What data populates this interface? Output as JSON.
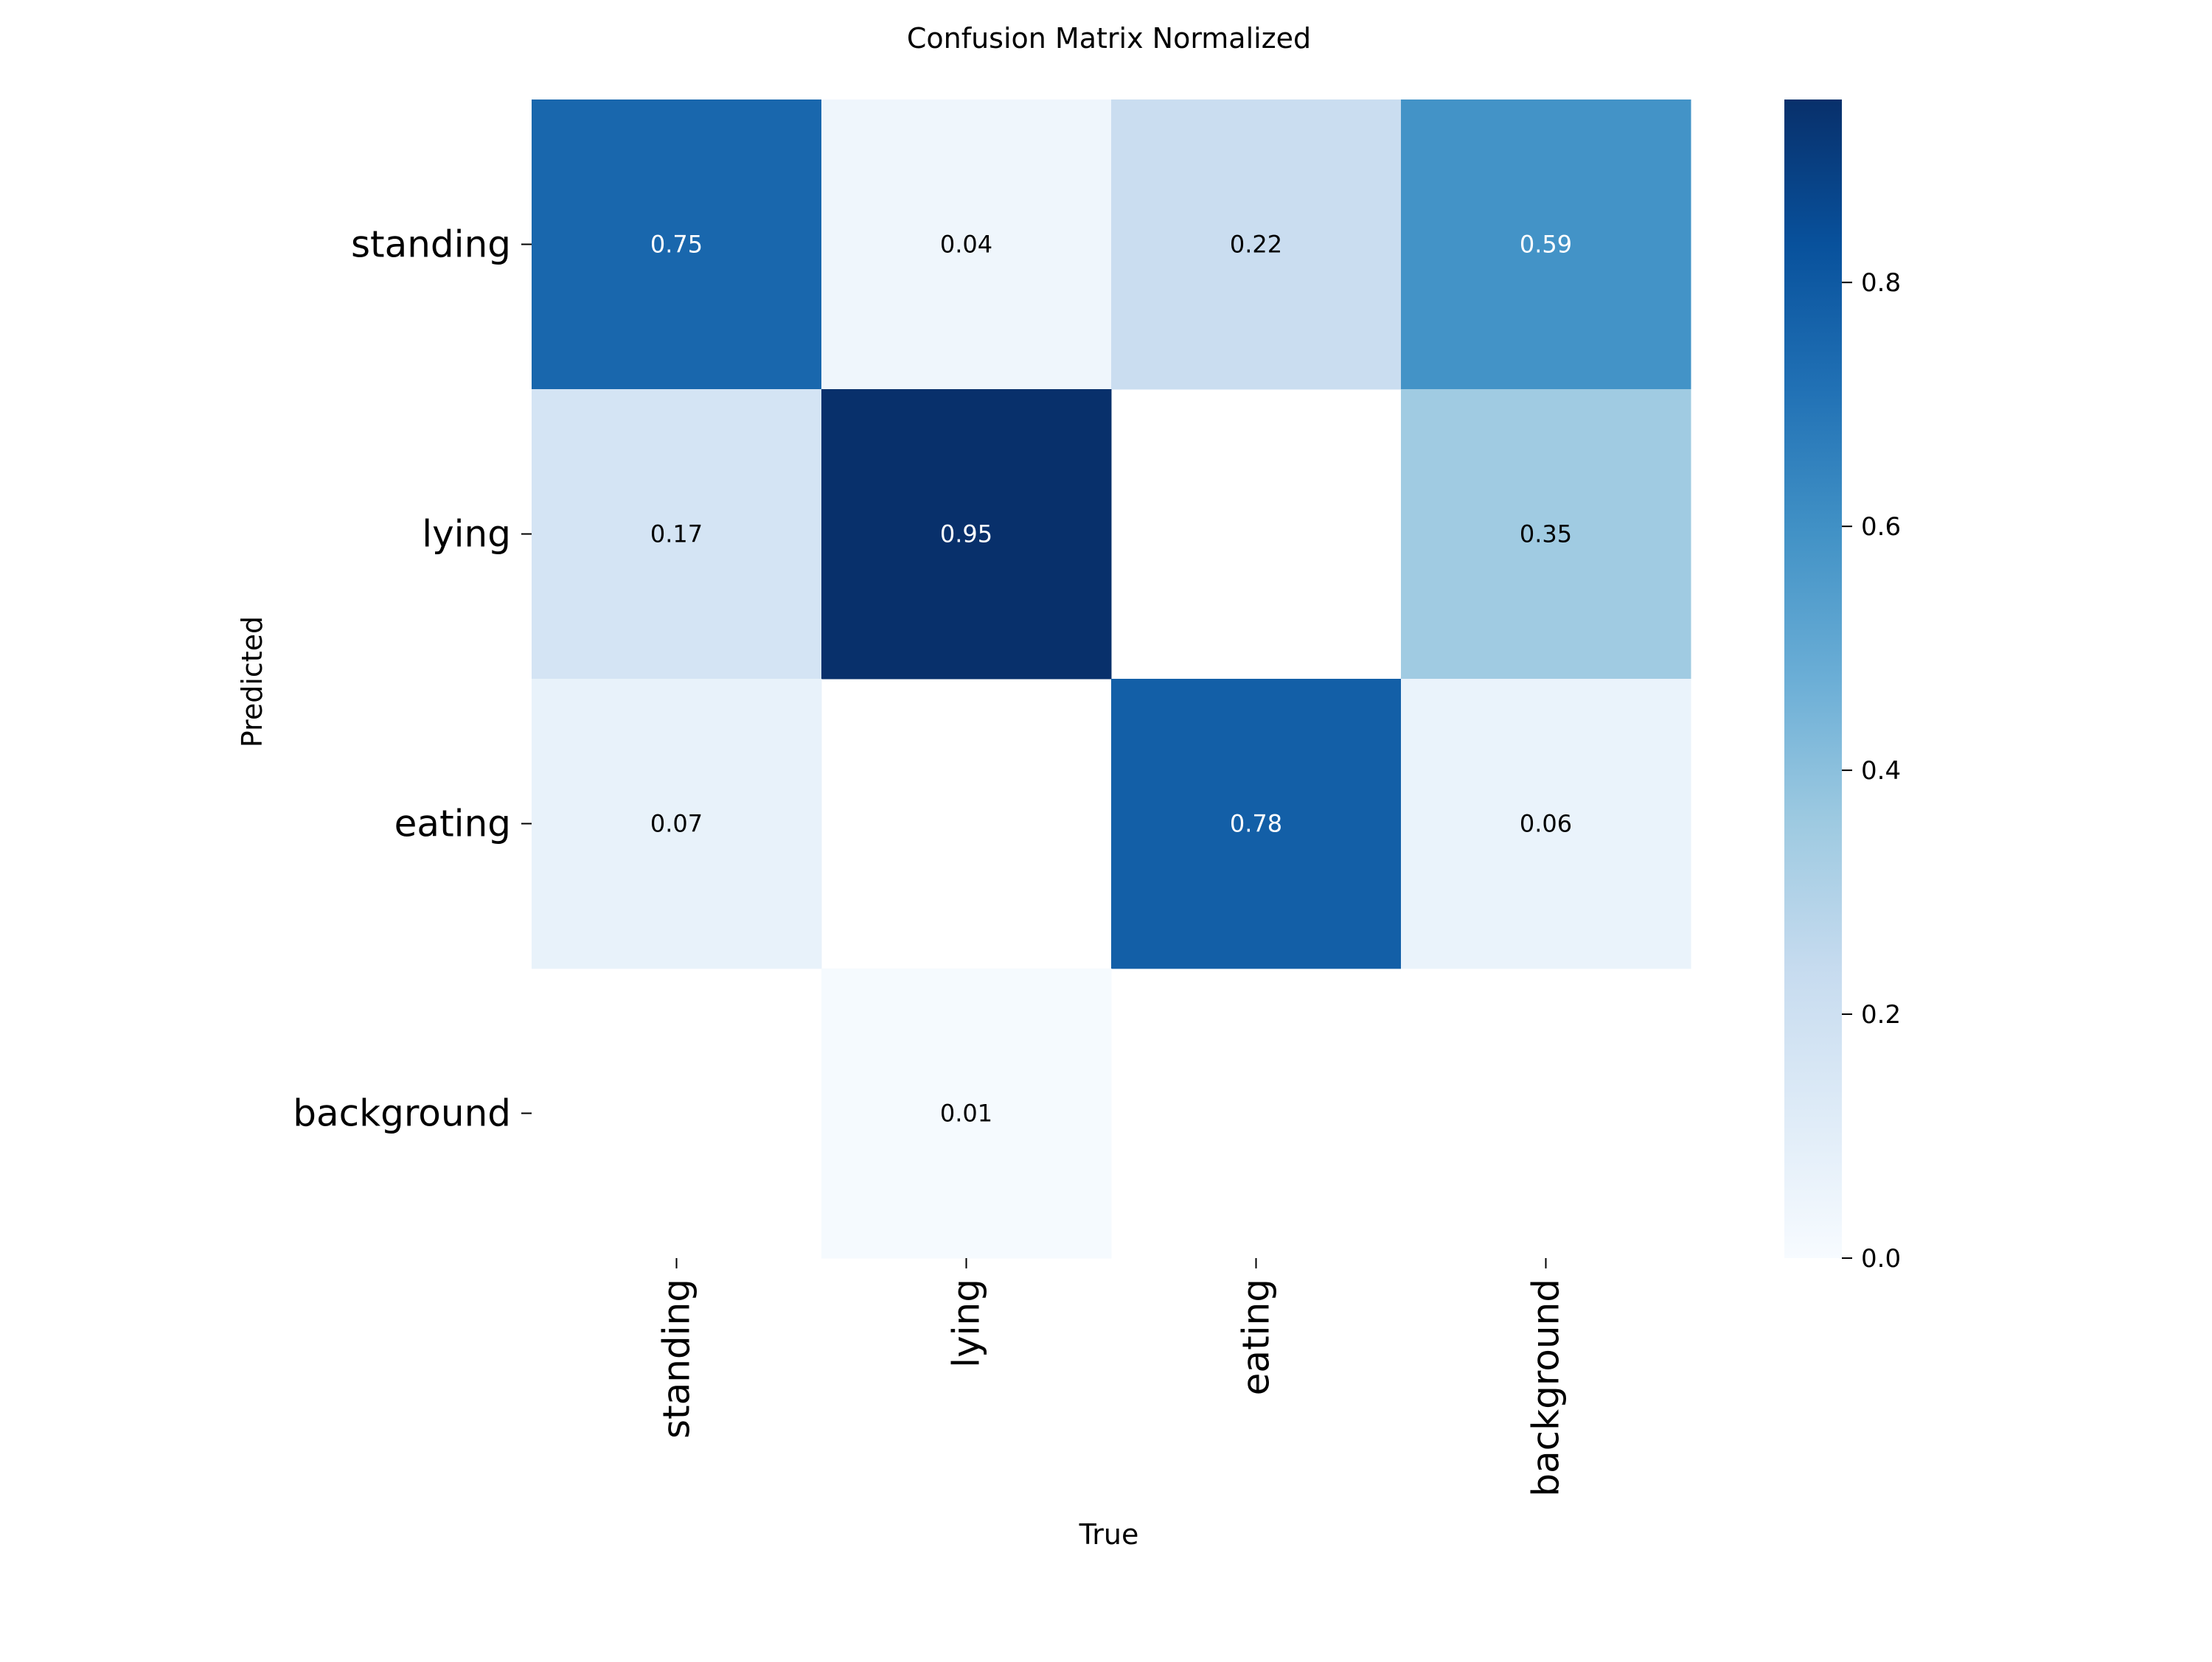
{
  "chart_data": {
    "type": "heatmap",
    "title": "Confusion Matrix Normalized",
    "xlabel": "True",
    "ylabel": "Predicted",
    "x_categories": [
      "standing",
      "lying",
      "eating",
      "background"
    ],
    "y_categories": [
      "standing",
      "lying",
      "eating",
      "background"
    ],
    "values": [
      [
        0.75,
        0.04,
        0.22,
        0.59
      ],
      [
        0.17,
        0.95,
        null,
        0.35
      ],
      [
        0.07,
        null,
        0.78,
        0.06
      ],
      [
        null,
        0.01,
        null,
        null
      ]
    ],
    "cell_labels": [
      [
        "0.75",
        "0.04",
        "0.22",
        "0.59"
      ],
      [
        "0.17",
        "0.95",
        "",
        "0.35"
      ],
      [
        "0.07",
        "",
        "0.78",
        "0.06"
      ],
      [
        "",
        "0.01",
        "",
        ""
      ]
    ],
    "colormap": "Blues",
    "colorbar": {
      "vmin": 0.0,
      "vmax": 0.95,
      "ticks": [
        0.0,
        0.2,
        0.4,
        0.6,
        0.8
      ],
      "tick_labels": [
        "0.0",
        "0.2",
        "0.4",
        "0.6",
        "0.8"
      ]
    },
    "label_colors": {
      "dark_text": "#000000",
      "light_text": "#ffffff"
    }
  }
}
